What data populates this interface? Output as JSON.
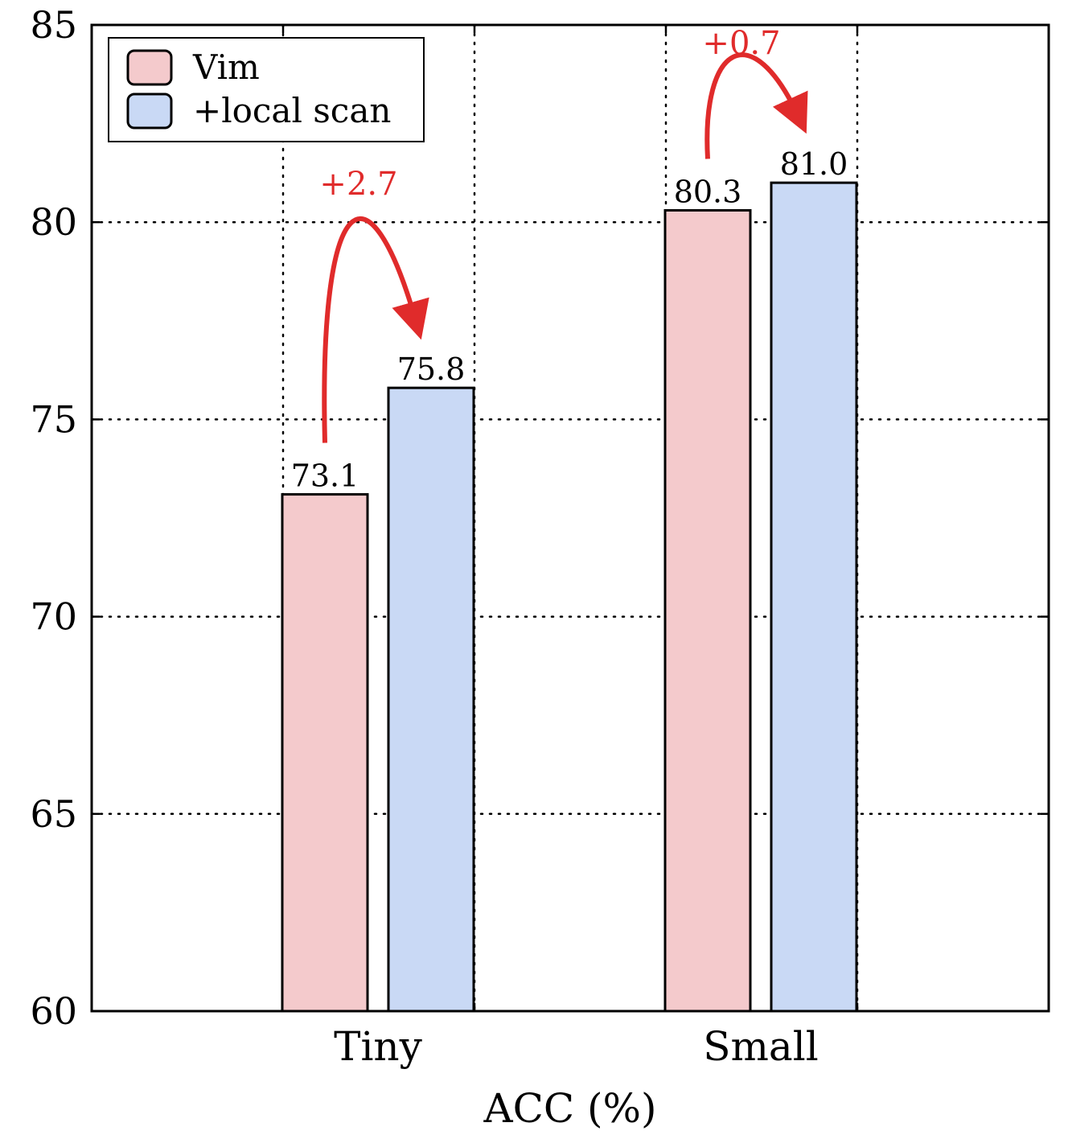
{
  "chart_data": {
    "type": "bar",
    "categories": [
      "Tiny",
      "Small"
    ],
    "series": [
      {
        "name": "Vim",
        "values": [
          73.1,
          80.3
        ],
        "color": "#f4cacc"
      },
      {
        "name": "+local scan",
        "values": [
          75.8,
          81.0
        ],
        "color": "#c9d9f5"
      }
    ],
    "value_labels": [
      [
        "73.1",
        "80.3"
      ],
      [
        "75.8",
        "81.0"
      ]
    ],
    "xlabel": "ACC (%)",
    "ylabel": "",
    "ylim": [
      60,
      85
    ],
    "yticks": [
      60,
      65,
      70,
      75,
      80,
      85
    ],
    "grid": true,
    "legend_position": "top-left",
    "annotations": [
      {
        "text": "+2.7",
        "category": "Tiny",
        "color": "#e02b2b"
      },
      {
        "text": "+0.7",
        "category": "Small",
        "color": "#e02b2b"
      }
    ]
  }
}
